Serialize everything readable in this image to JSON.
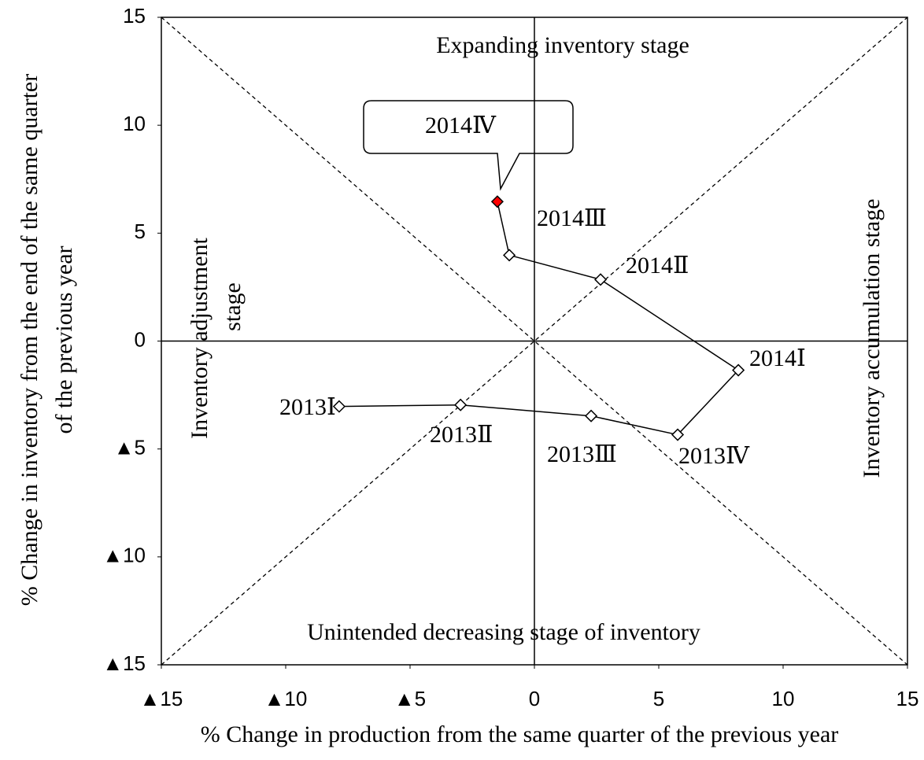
{
  "chart_data": {
    "type": "scatter",
    "xlabel": "% Change in production from the same quarter of the previous year",
    "ylabel": [
      "% Change in inventory from the end of the same quarter",
      "of the previous year"
    ],
    "annotations": {
      "top": "Expanding inventory stage",
      "right": "Inventory accumulation stage",
      "left": [
        "Inventory adjustment",
        "stage"
      ],
      "bottom": "Unintended decreasing stage of inventory"
    },
    "x": [
      -7.85,
      -2.97,
      2.28,
      5.76,
      8.2,
      2.66,
      -1.01,
      -1.49
    ],
    "values": [
      -3.03,
      -2.96,
      -3.47,
      -4.34,
      -1.35,
      2.85,
      3.98,
      6.46
    ],
    "point_labels": [
      "2013Ⅰ",
      "2013Ⅱ",
      "2013Ⅲ",
      "2013Ⅳ",
      "2014Ⅰ",
      "2014Ⅱ",
      "2014Ⅲ",
      "2014Ⅳ"
    ],
    "marker_colors": [
      "#ffffff",
      "#ffffff",
      "#ffffff",
      "#ffffff",
      "#ffffff",
      "#ffffff",
      "#ffffff",
      "#ff0000"
    ],
    "xlim": [
      -15,
      15
    ],
    "ylim": [
      -15,
      15
    ],
    "xticks": [
      {
        "value": -15,
        "label": "▲15"
      },
      {
        "value": -10,
        "label": "▲10"
      },
      {
        "value": -5,
        "label": "▲5"
      },
      0,
      5,
      10,
      15
    ],
    "yticks": [
      {
        "value": -15,
        "label": "▲15"
      },
      {
        "value": -10,
        "label": "▲10"
      },
      {
        "value": -5,
        "label": "▲5"
      },
      0,
      5,
      10,
      15
    ]
  }
}
